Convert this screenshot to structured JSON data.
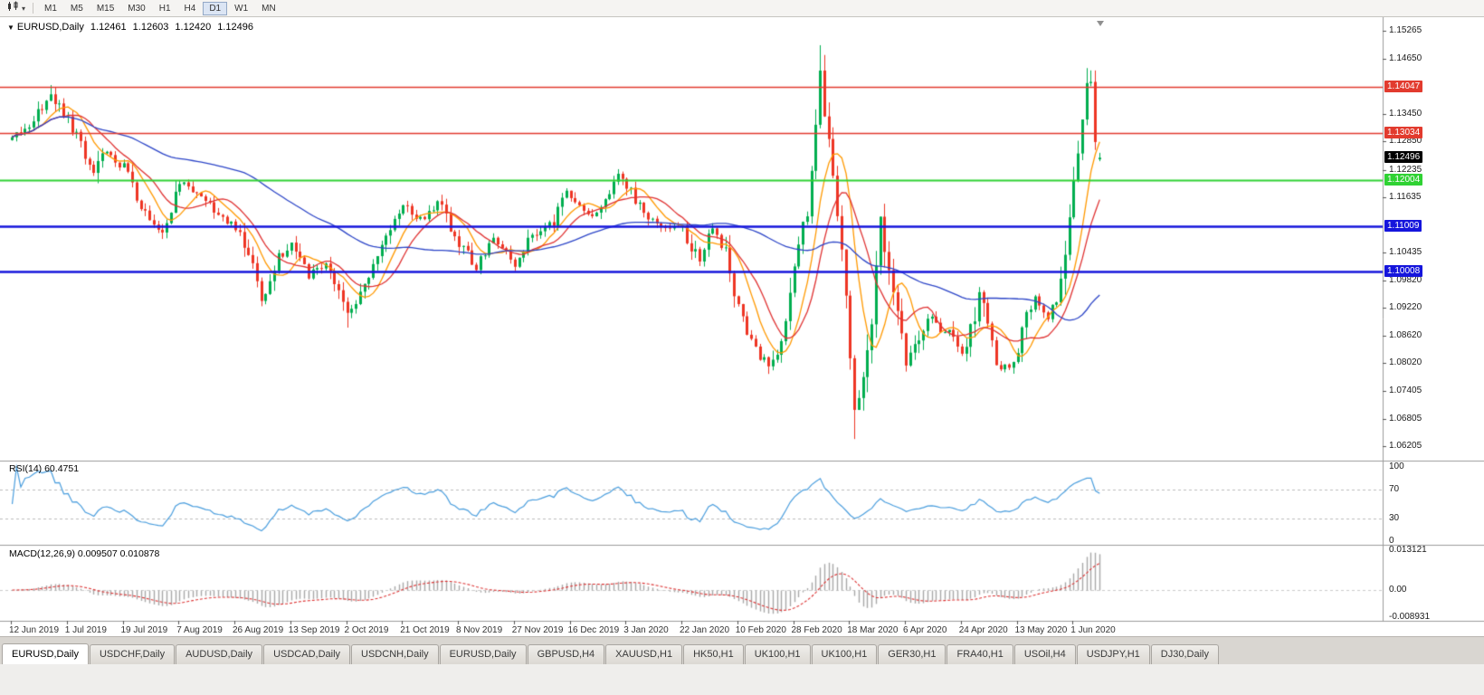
{
  "toolbar": {
    "chart_type_icon": "candlestick-chart-icon",
    "timeframes": [
      {
        "label": "M1",
        "active": false
      },
      {
        "label": "M5",
        "active": false
      },
      {
        "label": "M15",
        "active": false
      },
      {
        "label": "M30",
        "active": false
      },
      {
        "label": "H1",
        "active": false
      },
      {
        "label": "H4",
        "active": false
      },
      {
        "label": "D1",
        "active": true
      },
      {
        "label": "W1",
        "active": false
      },
      {
        "label": "MN",
        "active": false
      }
    ]
  },
  "chart": {
    "title_symbol": "EURUSD,Daily",
    "ohlc": {
      "open": "1.12461",
      "high": "1.12603",
      "low": "1.12420",
      "close": "1.12496"
    }
  },
  "colors": {
    "up_candle": "#00ae4f",
    "down_candle": "#ee3524",
    "axis_text": "#1a1a1a",
    "hline_red": "#e23b2e",
    "hline_green": "#2fd233",
    "hline_blue": "#1515dc",
    "rsi_line": "#4a9ede",
    "macd_hist": "#a8a8a8",
    "macd_signal": "#dd3333",
    "current_price_bg": "#000000"
  },
  "chart_data": {
    "type": "candlestick",
    "symbol": "EURUSD",
    "timeframe": "Daily",
    "last_ohlc": {
      "o": 1.12461,
      "h": 1.12603,
      "l": 1.1242,
      "c": 1.12496
    },
    "price_axis_ticks": [
      "1.15265",
      "1.14650",
      "1.13450",
      "1.12850",
      "1.12235",
      "1.11635",
      "1.10435",
      "1.09820",
      "1.09220",
      "1.08620",
      "1.08020",
      "1.07405",
      "1.06805",
      "1.06205"
    ],
    "x_labels": [
      "12 Jun 2019",
      "1 Jul 2019",
      "19 Jul 2019",
      "7 Aug 2019",
      "26 Aug 2019",
      "13 Sep 2019",
      "2 Oct 2019",
      "21 Oct 2019",
      "8 Nov 2019",
      "27 Nov 2019",
      "16 Dec 2019",
      "3 Jan 2020",
      "22 Jan 2020",
      "10 Feb 2020",
      "28 Feb 2020",
      "18 Mar 2020",
      "6 Apr 2020",
      "24 Apr 2020",
      "13 May 2020",
      "1 Jun 2020"
    ],
    "bars_per_label": 13,
    "horizontal_lines": [
      {
        "price": 1.14047,
        "label": "1.14047",
        "color": "#e23b2e",
        "width": 1.6
      },
      {
        "price": 1.13034,
        "label": "1.13034",
        "color": "#e23b2e",
        "width": 1.6
      },
      {
        "price": 1.12004,
        "label": "1.12004",
        "color": "#2fd233",
        "width": 2.2
      },
      {
        "price": 1.11009,
        "label": "1.11009",
        "color": "#1515dc",
        "width": 2.6
      },
      {
        "price": 1.10008,
        "label": "1.10008",
        "color": "#1515dc",
        "width": 2.6
      }
    ],
    "current_price": {
      "label": "1.12496",
      "value": 1.12496,
      "bg": "#000000"
    },
    "moving_averages": [
      {
        "period": 8,
        "color": "#ff9900"
      },
      {
        "period": 13,
        "color": "#e03232"
      },
      {
        "period": 55,
        "color": "#2d46c8"
      }
    ],
    "price_anchors": [
      [
        0,
        1.1288
      ],
      [
        4,
        1.132
      ],
      [
        9,
        1.1388
      ],
      [
        13,
        1.133
      ],
      [
        16,
        1.128
      ],
      [
        19,
        1.1215
      ],
      [
        21,
        1.1268
      ],
      [
        26,
        1.123
      ],
      [
        31,
        1.1128
      ],
      [
        35,
        1.1082
      ],
      [
        39,
        1.1196
      ],
      [
        44,
        1.1168
      ],
      [
        48,
        1.112
      ],
      [
        52,
        1.1098
      ],
      [
        55,
        1.104
      ],
      [
        58,
        1.094
      ],
      [
        62,
        1.103
      ],
      [
        65,
        1.1068
      ],
      [
        69,
        1.0995
      ],
      [
        73,
        1.1015
      ],
      [
        78,
        1.0905
      ],
      [
        82,
        1.098
      ],
      [
        85,
        1.1035
      ],
      [
        91,
        1.1148
      ],
      [
        96,
        1.111
      ],
      [
        99,
        1.1152
      ],
      [
        104,
        1.1065
      ],
      [
        108,
        1.101
      ],
      [
        112,
        1.107
      ],
      [
        117,
        1.1012
      ],
      [
        121,
        1.108
      ],
      [
        126,
        1.111
      ],
      [
        129,
        1.1172
      ],
      [
        135,
        1.112
      ],
      [
        141,
        1.1212
      ],
      [
        145,
        1.116
      ],
      [
        148,
        1.1118
      ],
      [
        152,
        1.11
      ],
      [
        156,
        1.1092
      ],
      [
        160,
        1.102
      ],
      [
        163,
        1.1098
      ],
      [
        166,
        1.1048
      ],
      [
        169,
        1.0912
      ],
      [
        172,
        1.0848
      ],
      [
        176,
        1.079
      ],
      [
        179,
        1.0855
      ],
      [
        182,
        1.1028
      ],
      [
        185,
        1.1135
      ],
      [
        188,
        1.1442
      ],
      [
        190,
        1.128
      ],
      [
        193,
        1.1062
      ],
      [
        196,
        1.07
      ],
      [
        198,
        1.076
      ],
      [
        200,
        1.088
      ],
      [
        202,
        1.112
      ],
      [
        205,
        1.096
      ],
      [
        208,
        1.0795
      ],
      [
        211,
        1.086
      ],
      [
        213,
        1.0905
      ],
      [
        216,
        1.0868
      ],
      [
        218,
        1.088
      ],
      [
        221,
        1.0822
      ],
      [
        223,
        1.087
      ],
      [
        225,
        1.0958
      ],
      [
        227,
        1.088
      ],
      [
        229,
        1.0792
      ],
      [
        232,
        1.08
      ],
      [
        234,
        1.0818
      ],
      [
        236,
        1.09
      ],
      [
        238,
        1.0952
      ],
      [
        241,
        1.0898
      ],
      [
        244,
        1.0962
      ],
      [
        246,
        1.112
      ],
      [
        248,
        1.125
      ],
      [
        250,
        1.139
      ],
      [
        251,
        1.1422
      ],
      [
        252,
        1.126
      ],
      [
        253,
        1.125
      ]
    ],
    "extremes": [
      {
        "bar": 9,
        "high": 1.1408
      },
      {
        "bar": 78,
        "low": 1.0879
      },
      {
        "bar": 176,
        "low": 1.0778
      },
      {
        "bar": 188,
        "high": 1.1495
      },
      {
        "bar": 196,
        "low": 1.0636
      },
      {
        "bar": 251,
        "high": 1.144
      }
    ],
    "rsi": {
      "label": "RSI(14) 60.4751",
      "period": 14,
      "value": 60.4751,
      "levels": [
        "100",
        "70",
        "30",
        "0"
      ],
      "line_color": "#4a9ede"
    },
    "macd": {
      "label": "MACD(12,26,9) 0.009507 0.010878",
      "fast": 12,
      "slow": 26,
      "signal_period": 9,
      "value": 0.009507,
      "signal_value": 0.010878,
      "scale_max": 0.013121,
      "scale_min": -0.008931,
      "scale_max_label": "0.013121",
      "scale_zero_label": "0.00",
      "scale_min_label": "-0.008931",
      "hist_color": "#a8a8a8",
      "signal_color": "#dd3333"
    }
  },
  "tabs": [
    {
      "label": "EURUSD,Daily",
      "active": true
    },
    {
      "label": "USDCHF,Daily",
      "active": false
    },
    {
      "label": "AUDUSD,Daily",
      "active": false
    },
    {
      "label": "USDCAD,Daily",
      "active": false
    },
    {
      "label": "USDCNH,Daily",
      "active": false
    },
    {
      "label": "EURUSD,Daily",
      "active": false
    },
    {
      "label": "GBPUSD,H4",
      "active": false
    },
    {
      "label": "XAUUSD,H1",
      "active": false
    },
    {
      "label": "HK50,H1",
      "active": false
    },
    {
      "label": "UK100,H1",
      "active": false
    },
    {
      "label": "UK100,H1",
      "active": false
    },
    {
      "label": "GER30,H1",
      "active": false
    },
    {
      "label": "FRA40,H1",
      "active": false
    },
    {
      "label": "USOil,H4",
      "active": false
    },
    {
      "label": "USDJPY,H1",
      "active": false
    },
    {
      "label": "DJ30,Daily",
      "active": false
    }
  ]
}
